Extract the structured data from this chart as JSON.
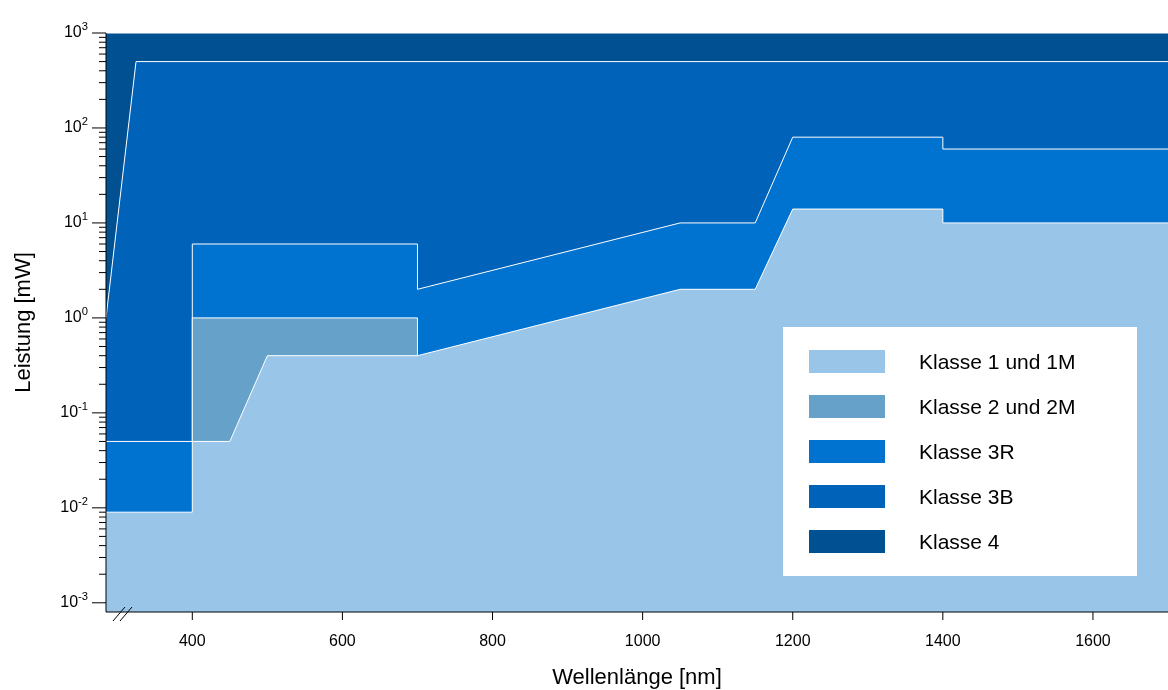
{
  "chart_data": {
    "type": "area",
    "xlabel": "Wellenlänge [nm]",
    "ylabel": "Leistung [mW]",
    "log": true,
    "legend": "bottom right",
    "xlim": [
      285,
      1700
    ],
    "xticks": [
      400,
      600,
      800,
      1000,
      1200,
      1400,
      1600
    ],
    "ylim": [
      0.0008,
      1000
    ],
    "yticks": [
      {
        "value": 0.001,
        "label": "10$^{-3}$"
      },
      {
        "value": 0.002,
        "label": null
      },
      {
        "value": 0.003,
        "label": null
      },
      {
        "value": 0.004,
        "label": null
      },
      {
        "value": 0.005,
        "label": null
      },
      {
        "value": 0.006,
        "label": null
      },
      {
        "value": 0.007,
        "label": null
      },
      {
        "value": 0.008,
        "label": null
      },
      {
        "value": 0.009,
        "label": null
      },
      {
        "value": 0.01,
        "label": "10$^{-2}$"
      },
      {
        "value": 0.02,
        "label": null
      },
      {
        "value": 0.03,
        "label": null
      },
      {
        "value": 0.04,
        "label": null
      },
      {
        "value": 0.05,
        "label": null
      },
      {
        "value": 0.06,
        "label": null
      },
      {
        "value": 0.07,
        "label": null
      },
      {
        "value": 0.08,
        "label": null
      },
      {
        "value": 0.09,
        "label": null
      },
      {
        "value": 0.1,
        "label": "10$^{-1}$"
      },
      {
        "value": 0.2,
        "label": null
      },
      {
        "value": 0.3,
        "label": null
      },
      {
        "value": 0.4,
        "label": null
      },
      {
        "value": 0.5,
        "label": null
      },
      {
        "value": 0.6,
        "label": null
      },
      {
        "value": 0.7,
        "label": null
      },
      {
        "value": 0.8,
        "label": null
      },
      {
        "value": 0.9,
        "label": null
      },
      {
        "value": 1,
        "label": "10$^{0}$"
      },
      {
        "value": 2,
        "label": null
      },
      {
        "value": 3,
        "label": null
      },
      {
        "value": 4,
        "label": null
      },
      {
        "value": 5,
        "label": null
      },
      {
        "value": 6,
        "label": null
      },
      {
        "value": 7,
        "label": null
      },
      {
        "value": 8,
        "label": null
      },
      {
        "value": 9,
        "label": null
      },
      {
        "value": 10,
        "label": "10$^{1}$"
      },
      {
        "value": 20,
        "label": null
      },
      {
        "value": 30,
        "label": null
      },
      {
        "value": 40,
        "label": null
      },
      {
        "value": 50,
        "label": null
      },
      {
        "value": 60,
        "label": null
      },
      {
        "value": 70,
        "label": null
      },
      {
        "value": 80,
        "label": null
      },
      {
        "value": 90,
        "label": null
      },
      {
        "value": 100,
        "label": "10$^{2}$"
      },
      {
        "value": 200,
        "label": null
      },
      {
        "value": 300,
        "label": null
      },
      {
        "value": 400,
        "label": null
      },
      {
        "value": 500,
        "label": null
      },
      {
        "value": 600,
        "label": null
      },
      {
        "value": 700,
        "label": null
      },
      {
        "value": 800,
        "label": null
      },
      {
        "value": 900,
        "label": null
      },
      {
        "value": 1000,
        "label": "10$^{3}$"
      }
    ],
    "series": [
      {
        "name": "Klasse 1 und 1M",
        "color": "#99c5e9",
        "x": [
          285,
          400,
          400,
          450,
          500,
          700,
          1050,
          1150,
          1200,
          1400,
          1400,
          1700
        ],
        "values": [
          0.009,
          0.009,
          0.05,
          0.05,
          0.4,
          0.4,
          2,
          2,
          14,
          14,
          10,
          10
        ]
      },
      {
        "name": "Klasse 2 und 2M",
        "color": "#65a1c9",
        "x": [
          400,
          400,
          700,
          700
        ],
        "values": [
          0.05,
          1,
          1,
          0.4
        ]
      },
      {
        "name": "Klasse 3R",
        "color": "#0073d0",
        "x": [
          285,
          400,
          400,
          700,
          700,
          1050,
          1150,
          1200,
          1400,
          1400,
          1700
        ],
        "values": [
          0.05,
          0.05,
          6,
          6,
          2,
          10,
          10,
          80,
          80,
          60,
          60
        ]
      },
      {
        "name": "Klasse 3B",
        "color": "#0062b9",
        "x": [
          285,
          325,
          1700
        ],
        "values": [
          1,
          500,
          500
        ]
      },
      {
        "name": "Klasse 4",
        "color": "#005092",
        "x": [
          285,
          1700
        ],
        "values": [
          1000,
          1000
        ]
      }
    ]
  }
}
